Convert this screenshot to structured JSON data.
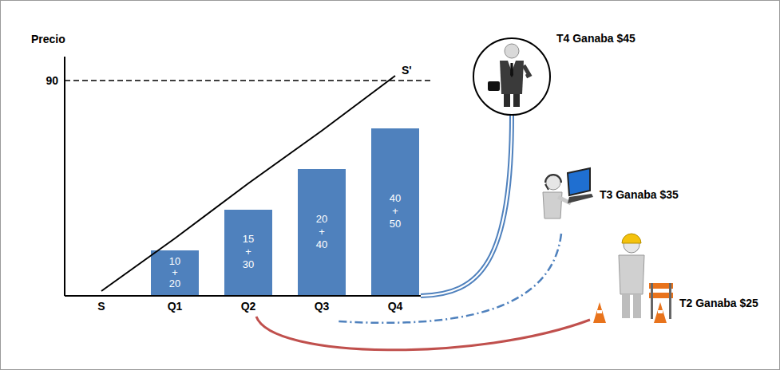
{
  "chart_data": {
    "type": "bar",
    "y_label": "Precio",
    "categories": [
      "S",
      "Q1",
      "Q2",
      "Q3",
      "Q4"
    ],
    "ylim": [
      0,
      100
    ],
    "yticks": [
      90
    ],
    "grid": false,
    "series": [
      {
        "type": "bar",
        "color": "#4f81bd",
        "values": [
          null,
          19,
          36,
          53,
          70
        ],
        "texts": [
          null,
          "10 + 20",
          "15 + 30",
          "20 + 40",
          "40 + 50"
        ]
      },
      {
        "name": "S'",
        "type": "line",
        "color": "#000000",
        "values": [
          2,
          24,
          47,
          69,
          92
        ]
      }
    ],
    "reference_lines": [
      {
        "y": 90,
        "line_style": "dashed",
        "color": "#000000"
      }
    ],
    "workers": [
      {
        "label": "T4 Ganaba $45",
        "links_to": "Q4",
        "color": "#4f81bd",
        "line_style": "double"
      },
      {
        "label": "T3 Ganaba $35",
        "links_to": "Q3",
        "color": "#4f81bd",
        "line_style": "dash-dot"
      },
      {
        "label": "T2 Ganaba $25",
        "links_to": "Q2",
        "color": "#c0504d",
        "line_style": "solid"
      }
    ]
  }
}
